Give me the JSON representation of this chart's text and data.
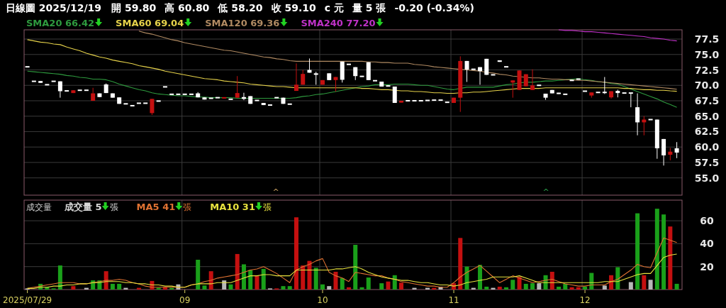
{
  "chart_data": [
    {
      "type": "candlestick",
      "title": "日線圖 2025/12/19",
      "annotations": [
        "開 59.80",
        "高 60.80",
        "低 58.20",
        "收 59.10",
        "c 元",
        "量 5 張",
        "-0.20 (-0.34%)"
      ],
      "categories": [
        null,
        null,
        null,
        null,
        null,
        null,
        null,
        null,
        null,
        null,
        null,
        null,
        null,
        null,
        null,
        null,
        null,
        null,
        null,
        null,
        null,
        null,
        null,
        null,
        null,
        null,
        null,
        null,
        null,
        null,
        null,
        null,
        null,
        null,
        null,
        null,
        null,
        null,
        null,
        null,
        null,
        null,
        null,
        null,
        null,
        null,
        null,
        null,
        null,
        null,
        null,
        null,
        null,
        null,
        null,
        null,
        null,
        null,
        null,
        null,
        null,
        null,
        null,
        null,
        null,
        null,
        null,
        null,
        null,
        null,
        null,
        null,
        null,
        null,
        null,
        null,
        null,
        null,
        null,
        null,
        null,
        null,
        null,
        null,
        null,
        null,
        null,
        null,
        null,
        null,
        null,
        null,
        null,
        null,
        null,
        null,
        null,
        null,
        null,
        null
      ],
      "ohlc": [
        [
          73.0,
          73.0,
          73.0,
          73.0
        ],
        [
          70.65,
          70.65,
          70.65,
          70.65
        ],
        [
          70.7,
          70.7,
          70.4,
          70.4
        ],
        [
          70.1,
          70.1,
          70.1,
          70.1
        ],
        [
          70.65,
          70.65,
          70.65,
          70.65
        ],
        [
          70.65,
          70.65,
          68.0,
          69.05
        ],
        [
          69.1,
          69.1,
          69.1,
          69.1
        ],
        [
          68.75,
          69.2,
          68.75,
          69.2
        ],
        [
          69.2,
          69.2,
          69.2,
          69.2
        ],
        [
          69.2,
          69.2,
          69.2,
          69.2
        ],
        [
          67.5,
          69.6,
          67.5,
          68.7
        ],
        [
          68.7,
          68.7,
          68.1,
          68.1
        ],
        [
          70.15,
          70.3,
          68.75,
          68.75
        ],
        [
          68.7,
          68.7,
          68.0,
          68.0
        ],
        [
          68.05,
          68.05,
          67.0,
          67.0
        ],
        [
          67.0,
          67.0,
          67.0,
          67.0
        ],
        [
          66.7,
          66.7,
          66.7,
          66.7
        ],
        [
          67.1,
          67.1,
          67.1,
          67.1
        ],
        [
          67.1,
          67.1,
          67.1,
          67.1
        ],
        [
          65.5,
          67.8,
          65.2,
          67.8
        ],
        [
          67.45,
          67.45,
          67.45,
          67.45
        ],
        [
          69.75,
          69.75,
          69.75,
          69.75
        ],
        [
          68.55,
          68.55,
          68.55,
          68.55
        ],
        [
          68.6,
          68.6,
          68.5,
          68.5
        ],
        [
          68.55,
          68.55,
          68.55,
          68.55
        ],
        [
          68.55,
          68.55,
          68.55,
          68.55
        ],
        [
          68.7,
          68.9,
          68.05,
          68.05
        ],
        [
          68.05,
          68.05,
          67.7,
          67.7
        ],
        [
          67.9,
          67.9,
          67.9,
          67.9
        ],
        [
          68.0,
          68.0,
          68.0,
          68.0
        ],
        [
          67.9,
          68.05,
          67.9,
          68.05
        ],
        [
          67.75,
          67.75,
          67.75,
          67.75
        ],
        [
          68.0,
          71.5,
          68.0,
          68.75
        ],
        [
          68.1,
          68.8,
          67.6,
          67.8
        ],
        [
          68.25,
          68.25,
          67.0,
          67.0
        ],
        [
          67.55,
          67.55,
          67.55,
          67.55
        ],
        [
          67.15,
          67.15,
          66.8,
          66.8
        ],
        [
          66.8,
          66.8,
          66.8,
          66.8
        ],
        [
          68.0,
          68.0,
          68.0,
          68.0
        ],
        [
          68.0,
          68.0,
          67.0,
          67.0
        ],
        [
          66.95,
          66.95,
          66.95,
          66.95
        ],
        [
          69.1,
          73.55,
          69.1,
          70.1
        ],
        [
          70.1,
          72.5,
          70.1,
          71.85
        ],
        [
          72.5,
          74.35,
          72.05,
          72.05
        ],
        [
          71.95,
          72.2,
          70.1,
          71.7
        ],
        [
          70.1,
          70.85,
          70.1,
          70.85
        ],
        [
          71.95,
          71.95,
          70.85,
          70.85
        ],
        [
          70.85,
          71.35,
          69.0,
          71.35
        ],
        [
          73.85,
          73.85,
          70.45,
          70.9
        ],
        [
          73.4,
          73.4,
          73.4,
          73.4
        ],
        [
          72.95,
          72.95,
          70.85,
          71.5
        ],
        [
          71.45,
          71.45,
          71.45,
          71.45
        ],
        [
          73.75,
          73.75,
          70.85,
          70.85
        ],
        [
          70.75,
          70.75,
          70.75,
          70.75
        ],
        [
          70.6,
          70.6,
          69.8,
          69.8
        ],
        [
          69.9,
          70.0,
          69.8,
          69.9
        ],
        [
          69.8,
          69.8,
          67.15,
          67.15
        ],
        [
          67.2,
          67.5,
          67.2,
          67.5
        ],
        [
          67.5,
          67.5,
          67.5,
          67.5
        ],
        [
          67.5,
          67.5,
          67.5,
          67.5
        ],
        [
          67.5,
          67.5,
          67.5,
          67.5
        ],
        [
          67.55,
          67.55,
          67.55,
          67.55
        ],
        [
          67.6,
          67.6,
          67.6,
          67.6
        ],
        [
          67.6,
          67.6,
          67.6,
          67.6
        ],
        [
          67.25,
          67.25,
          67.25,
          67.25
        ],
        [
          67.15,
          68.0,
          67.15,
          68.0
        ],
        [
          68.0,
          74.7,
          65.7,
          73.95
        ],
        [
          73.95,
          73.95,
          70.55,
          72.55
        ],
        [
          72.6,
          72.6,
          72.6,
          72.6
        ],
        [
          72.95,
          72.95,
          70.1,
          72.3
        ],
        [
          74.3,
          74.3,
          71.7,
          71.7
        ],
        [
          71.7,
          71.7,
          71.7,
          71.7
        ],
        [
          74.05,
          74.05,
          73.8,
          73.8
        ],
        [
          73.0,
          73.0,
          73.0,
          73.0
        ],
        [
          70.45,
          70.8,
          68.0,
          70.8
        ],
        [
          69.25,
          72.4,
          69.25,
          72.4
        ],
        [
          69.85,
          71.8,
          69.85,
          71.8
        ],
        [
          69.25,
          72.6,
          69.25,
          70.0
        ],
        [
          70.0,
          70.0,
          70.0,
          70.0
        ],
        [
          68.65,
          68.65,
          67.65,
          68.0
        ],
        [
          69.25,
          69.25,
          68.7,
          68.7
        ],
        [
          68.8,
          68.8,
          68.6,
          68.6
        ],
        [
          68.55,
          68.55,
          68.55,
          68.55
        ],
        [
          70.8,
          70.8,
          70.8,
          70.8
        ],
        [
          71.0,
          71.0,
          71.0,
          71.0
        ],
        [
          69.05,
          69.05,
          69.05,
          69.05
        ],
        [
          68.35,
          68.85,
          68.0,
          68.85
        ],
        [
          68.85,
          68.85,
          68.85,
          68.85
        ],
        [
          68.85,
          71.35,
          68.6,
          68.85
        ],
        [
          68.05,
          69.05,
          67.85,
          69.05
        ],
        [
          69.1,
          69.3,
          68.05,
          68.75
        ],
        [
          68.75,
          68.75,
          68.75,
          68.75
        ],
        [
          68.75,
          68.75,
          66.45,
          68.75
        ],
        [
          66.45,
          68.7,
          61.9,
          64.0
        ],
        [
          64.0,
          65.0,
          61.9,
          64.45
        ],
        [
          64.45,
          64.45,
          64.45,
          64.45
        ],
        [
          64.45,
          64.45,
          58.1,
          59.8
        ],
        [
          61.3,
          61.3,
          57.0,
          58.65
        ],
        [
          58.75,
          59.85,
          57.85,
          59.25
        ],
        [
          59.8,
          60.8,
          58.2,
          59.1
        ]
      ],
      "colors": [
        "#ffffff",
        "#ffffff",
        "#ffffff",
        "#ffffff",
        "#ffffff",
        "#ffffff",
        "#ffffff",
        "#c41010",
        "#ffffff",
        "#ffffff",
        "#c41010",
        "#ffffff",
        "#ffffff",
        "#ffffff",
        "#ffffff",
        "#ffffff",
        "#ffffff",
        "#ffffff",
        "#ffffff",
        "#c41010",
        "#ffffff",
        "#ffffff",
        "#ffffff",
        "#ffffff",
        "#ffffff",
        "#ffffff",
        "#ffffff",
        "#ffffff",
        "#ffffff",
        "#ffffff",
        "#c41010",
        "#ffffff",
        "#c41010",
        "#ffffff",
        "#ffffff",
        "#ffffff",
        "#ffffff",
        "#ffffff",
        "#ffffff",
        "#ffffff",
        "#ffffff",
        "#c41010",
        "#c41010",
        "#ffffff",
        "#ffffff",
        "#c41010",
        "#ffffff",
        "#c41010",
        "#ffffff",
        "#ffffff",
        "#ffffff",
        "#ffffff",
        "#ffffff",
        "#ffffff",
        "#ffffff",
        "#ffffff",
        "#ffffff",
        "#c41010",
        "#ffffff",
        "#ffffff",
        "#ffffff",
        "#ffffff",
        "#ffffff",
        "#ffffff",
        "#ffffff",
        "#c41010",
        "#c41010",
        "#ffffff",
        "#ffffff",
        "#ffffff",
        "#ffffff",
        "#ffffff",
        "#ffffff",
        "#ffffff",
        "#c41010",
        "#c41010",
        "#c41010",
        "#c41010",
        "#ffffff",
        "#ffffff",
        "#ffffff",
        "#ffffff",
        "#ffffff",
        "#ffffff",
        "#ffffff",
        "#ffffff",
        "#c41010",
        "#ffffff",
        "#ffffff",
        "#c41010",
        "#ffffff",
        "#ffffff",
        "#ffffff",
        "#ffffff",
        "#c41010",
        "#ffffff",
        "#ffffff",
        "#ffffff",
        "#c41010",
        "#ffffff"
      ],
      "series": [
        {
          "name": "SMA20 66.42",
          "type": "line",
          "color": "#2e9a3e",
          "values": [
            72.3,
            72.2,
            72.1,
            72.0,
            71.9,
            71.8,
            71.6,
            71.5,
            71.3,
            71.2,
            71.0,
            71.0,
            70.9,
            70.6,
            70.2,
            69.9,
            69.6,
            69.3,
            69.1,
            68.8,
            68.6,
            68.5,
            68.4,
            68.3,
            68.3,
            68.2,
            68.1,
            68.1,
            68.0,
            68.0,
            68.0,
            68.0,
            67.9,
            67.9,
            67.9,
            67.9,
            67.9,
            67.9,
            67.9,
            67.9,
            67.9,
            68.0,
            68.2,
            68.3,
            68.5,
            68.6,
            68.8,
            69.0,
            69.2,
            69.4,
            69.6,
            69.8,
            69.9,
            70.1,
            70.1,
            70.1,
            70.2,
            70.2,
            70.2,
            70.1,
            70.0,
            70.0,
            69.8,
            69.6,
            69.4,
            69.3,
            69.5,
            69.7,
            69.7,
            69.7,
            69.7,
            69.7,
            69.9,
            70.1,
            70.2,
            70.4,
            70.5,
            70.5,
            70.6,
            70.7,
            70.7,
            70.8,
            70.9,
            71.0,
            71.1,
            70.9,
            70.8,
            70.6,
            70.5,
            70.3,
            70.2,
            69.8,
            69.4,
            69.0,
            68.6,
            68.2,
            67.8,
            67.3,
            66.9,
            66.42
          ]
        },
        {
          "name": "SMA60 69.04",
          "type": "line",
          "color": "#e6d24a",
          "values": [
            77.4,
            77.2,
            77.0,
            76.9,
            76.7,
            76.6,
            76.2,
            75.9,
            75.6,
            75.2,
            74.9,
            74.6,
            74.4,
            74.1,
            73.9,
            73.7,
            73.5,
            73.2,
            73.0,
            72.8,
            72.6,
            72.3,
            72.1,
            71.9,
            71.7,
            71.5,
            71.3,
            71.1,
            71.0,
            70.9,
            70.7,
            70.6,
            70.5,
            70.4,
            70.2,
            70.1,
            70.0,
            69.9,
            69.8,
            69.8,
            69.7,
            69.6,
            69.6,
            69.6,
            69.6,
            69.6,
            69.6,
            69.6,
            69.6,
            69.6,
            69.6,
            69.5,
            69.5,
            69.4,
            69.3,
            69.3,
            69.2,
            69.1,
            69.1,
            69.0,
            69.0,
            68.9,
            68.8,
            68.8,
            68.7,
            68.7,
            68.8,
            68.8,
            68.9,
            68.9,
            69.0,
            69.1,
            69.2,
            69.3,
            69.4,
            69.5,
            69.5,
            69.5,
            69.5,
            69.6,
            69.6,
            69.6,
            69.6,
            69.6,
            69.6,
            69.6,
            69.6,
            69.6,
            69.6,
            69.6,
            69.6,
            69.5,
            69.5,
            69.4,
            69.3,
            69.3,
            69.2,
            69.2,
            69.1,
            69.04
          ]
        },
        {
          "name": "SMA120 69.36",
          "type": "line",
          "color": "#b08a62",
          "values": [
            null,
            null,
            null,
            null,
            null,
            null,
            null,
            null,
            null,
            null,
            null,
            null,
            null,
            null,
            null,
            null,
            null,
            78.8,
            78.5,
            78.3,
            78.0,
            77.7,
            77.4,
            77.2,
            76.9,
            76.7,
            76.5,
            76.3,
            76.1,
            75.9,
            75.7,
            75.6,
            75.4,
            75.2,
            75.0,
            74.8,
            74.6,
            74.5,
            74.3,
            74.2,
            74.0,
            73.9,
            73.9,
            73.9,
            73.9,
            73.9,
            73.9,
            73.9,
            73.9,
            73.9,
            73.9,
            73.9,
            73.8,
            73.8,
            73.7,
            73.7,
            73.6,
            73.6,
            73.6,
            73.4,
            73.3,
            73.2,
            73.0,
            72.9,
            72.8,
            72.7,
            72.6,
            72.5,
            72.4,
            72.3,
            72.1,
            72.0,
            71.8,
            71.7,
            71.5,
            71.4,
            71.3,
            71.2,
            71.2,
            71.1,
            71.0,
            71.0,
            70.9,
            70.9,
            70.8,
            70.8,
            70.7,
            70.6,
            70.5,
            70.4,
            70.3,
            70.2,
            70.1,
            70.0,
            69.9,
            69.8,
            69.7,
            69.6,
            69.5,
            69.36
          ]
        },
        {
          "name": "SMA240 77.20",
          "type": "line",
          "color": "#c032c8",
          "values": [
            null,
            null,
            null,
            null,
            null,
            null,
            null,
            null,
            null,
            null,
            null,
            null,
            null,
            null,
            null,
            null,
            null,
            null,
            null,
            null,
            null,
            null,
            null,
            null,
            null,
            null,
            null,
            null,
            null,
            null,
            null,
            null,
            null,
            null,
            null,
            null,
            null,
            null,
            null,
            null,
            null,
            null,
            null,
            null,
            null,
            null,
            null,
            null,
            null,
            null,
            null,
            null,
            null,
            null,
            null,
            null,
            null,
            null,
            null,
            null,
            null,
            null,
            null,
            null,
            null,
            null,
            null,
            null,
            null,
            null,
            null,
            null,
            null,
            null,
            null,
            null,
            null,
            null,
            null,
            null,
            null,
            79.0,
            78.9,
            78.9,
            78.8,
            78.7,
            78.7,
            78.6,
            78.5,
            78.4,
            78.3,
            78.2,
            78.1,
            78.0,
            77.9,
            77.7,
            77.6,
            77.5,
            77.3,
            77.2
          ]
        }
      ],
      "ylim": [
        52.2,
        79.0
      ],
      "yticks": [
        {
          "value": 55,
          "label": "55.0"
        },
        {
          "value": 57.5,
          "label": "57.5"
        },
        {
          "value": 60,
          "label": "60.0"
        },
        {
          "value": 62.5,
          "label": "62.5"
        },
        {
          "value": 65,
          "label": "65.0"
        },
        {
          "value": 67.5,
          "label": "67.5"
        },
        {
          "value": 70,
          "label": "70.0"
        },
        {
          "value": 72.5,
          "label": "72.5"
        },
        {
          "value": 75,
          "label": "75.0"
        },
        {
          "value": 77.5,
          "label": "77.5"
        }
      ],
      "tick_labels": "y",
      "grid": true,
      "legend": "top left"
    },
    {
      "type": "bar",
      "title": "成交量",
      "annotations": [
        "^",
        "^"
      ],
      "categories": [
        "2025/07/29",
        null,
        null,
        null,
        null,
        null,
        null,
        null,
        null,
        null,
        null,
        null,
        null,
        null,
        null,
        null,
        null,
        null,
        null,
        null,
        null,
        null,
        null,
        null,
        "09",
        null,
        null,
        null,
        null,
        null,
        null,
        null,
        null,
        null,
        null,
        null,
        null,
        null,
        null,
        null,
        null,
        null,
        null,
        null,
        null,
        "10",
        null,
        null,
        null,
        null,
        null,
        null,
        null,
        null,
        null,
        null,
        null,
        null,
        null,
        null,
        null,
        null,
        null,
        null,
        null,
        "11",
        null,
        null,
        null,
        null,
        null,
        null,
        null,
        null,
        null,
        null,
        null,
        null,
        null,
        null,
        null,
        null,
        null,
        null,
        null,
        "12",
        null,
        null,
        null,
        null,
        null,
        null,
        null,
        null,
        null,
        null,
        null,
        null,
        null,
        null
      ],
      "series": [
        {
          "name": "成交量 5張",
          "type": "bar",
          "values": [
            1,
            0,
            5,
            2,
            1,
            21,
            0,
            3,
            0,
            1.5,
            8,
            8,
            16,
            5,
            5,
            1.5,
            0,
            1.5,
            0,
            7.5,
            1.5,
            2,
            1.5,
            4.5,
            0,
            0,
            26,
            3.5,
            16,
            0,
            8,
            4.5,
            31,
            22,
            17,
            12,
            18,
            1,
            1,
            3,
            3,
            63,
            21,
            25,
            19,
            4.5,
            3,
            15.5,
            10,
            2,
            39,
            2,
            10.5,
            0,
            5.5,
            7,
            12.5,
            6,
            0,
            1.5,
            0,
            1.5,
            1.5,
            2.5,
            0,
            5.5,
            45,
            20,
            1.5,
            21.5,
            2.5,
            1.5,
            2.5,
            2,
            8.5,
            11,
            5,
            5.5,
            5.5,
            12.5,
            15.5,
            2.5,
            5,
            2,
            2,
            2.5,
            14.5,
            0,
            3.5,
            12.5,
            19.5,
            0,
            6.5,
            66.5,
            12.5,
            8.5,
            70.5,
            65.5,
            55,
            5
          ],
          "colors": [
            "#b8b8b8",
            "#1aa01a",
            "#1aa01a",
            "#1aa01a",
            "#1aa01a",
            "#1aa01a",
            "#1aa01a",
            "#c41010",
            "#1aa01a",
            "#b8b8b8",
            "#1aa01a",
            "#1aa01a",
            "#c41010",
            "#1aa01a",
            "#1aa01a",
            "#b8b8b8",
            "#1aa01a",
            "#c41010",
            "#1aa01a",
            "#c41010",
            "#1aa01a",
            "#c41010",
            "#1aa01a",
            "#b8b8b8",
            "#1aa01a",
            "#1aa01a",
            "#1aa01a",
            "#1aa01a",
            "#c41010",
            "#1aa01a",
            "#b8b8b8",
            "#1aa01a",
            "#c41010",
            "#1aa01a",
            "#1aa01a",
            "#c41010",
            "#1aa01a",
            "#b8b8b8",
            "#c41010",
            "#1aa01a",
            "#1aa01a",
            "#c41010",
            "#c41010",
            "#c41010",
            "#1aa01a",
            "#1aa01a",
            "#b8b8b8",
            "#c41010",
            "#1aa01a",
            "#c41010",
            "#1aa01a",
            "#1aa01a",
            "#1aa01a",
            "#1aa01a",
            "#1aa01a",
            "#c41010",
            "#1aa01a",
            "#c41010",
            "#1aa01a",
            "#b8b8b8",
            "#1aa01a",
            "#b8b8b8",
            "#c41010",
            "#b8b8b8",
            "#1aa01a",
            "#c41010",
            "#c41010",
            "#1aa01a",
            "#b8b8b8",
            "#1aa01a",
            "#1aa01a",
            "#b8b8b8",
            "#c41010",
            "#1aa01a",
            "#1aa01a",
            "#c41010",
            "#1aa01a",
            "#1aa01a",
            "#b8b8b8",
            "#1aa01a",
            "#c41010",
            "#1aa01a",
            "#1aa01a",
            "#c41010",
            "#c41010",
            "#1aa01a",
            "#1aa01a",
            "#1aa01a",
            "#b8b8b8",
            "#c41010",
            "#1aa01a",
            "#1aa01a",
            "#b8b8b8",
            "#1aa01a",
            "#c41010",
            "#b8b8b8",
            "#1aa01a",
            "#1aa01a",
            "#c41010",
            "#1aa01a"
          ]
        },
        {
          "name": "MA5 41張",
          "type": "line",
          "color": "#e07232",
          "values": [
            1,
            2,
            3,
            4,
            5,
            6,
            6,
            6,
            5,
            5,
            6,
            7,
            8,
            8,
            9,
            8,
            6,
            5,
            3,
            2,
            2,
            2,
            2,
            2,
            2,
            4,
            5,
            7,
            8,
            10,
            11,
            12,
            13,
            15,
            17,
            18,
            20,
            17,
            14,
            10,
            6,
            17,
            20,
            22,
            25,
            27,
            15,
            12,
            10,
            7,
            15,
            14,
            13,
            12,
            12,
            10,
            9,
            7,
            6,
            5,
            4,
            3,
            3,
            2,
            2,
            6,
            11,
            15,
            18,
            21,
            16,
            11,
            6,
            9,
            12,
            10,
            8,
            6,
            7,
            8,
            9,
            7,
            5,
            4,
            3,
            3,
            4,
            4,
            4,
            7,
            9,
            13,
            17,
            22,
            20,
            19,
            32,
            45,
            43,
            41
          ]
        },
        {
          "name": "MA10 31張",
          "type": "line",
          "color": "#e8e23e",
          "values": [
            1,
            1,
            2,
            2,
            3,
            3,
            4,
            4,
            5,
            5,
            6,
            6,
            7,
            7,
            7,
            6,
            6,
            5,
            5,
            4,
            4,
            3,
            3,
            2,
            2,
            4,
            5,
            5,
            5,
            6,
            6,
            6,
            8,
            10,
            12,
            12,
            13,
            13,
            12,
            12,
            12,
            17,
            17,
            17,
            17,
            17,
            17,
            18,
            18,
            19,
            20,
            18,
            15,
            13,
            11,
            10,
            9,
            8,
            8,
            7,
            6,
            6,
            5,
            4,
            4,
            3,
            4,
            6,
            7,
            8,
            9,
            11,
            11,
            11,
            11,
            12,
            10,
            8,
            6,
            6,
            6,
            6,
            6,
            6,
            6,
            6,
            6,
            6,
            7,
            7,
            7,
            9,
            11,
            13,
            14,
            14,
            21,
            28,
            30,
            31
          ]
        }
      ],
      "ylim": [
        0,
        78
      ],
      "yticks": [
        20,
        40,
        60
      ],
      "grid": true,
      "legend": "top left"
    }
  ]
}
